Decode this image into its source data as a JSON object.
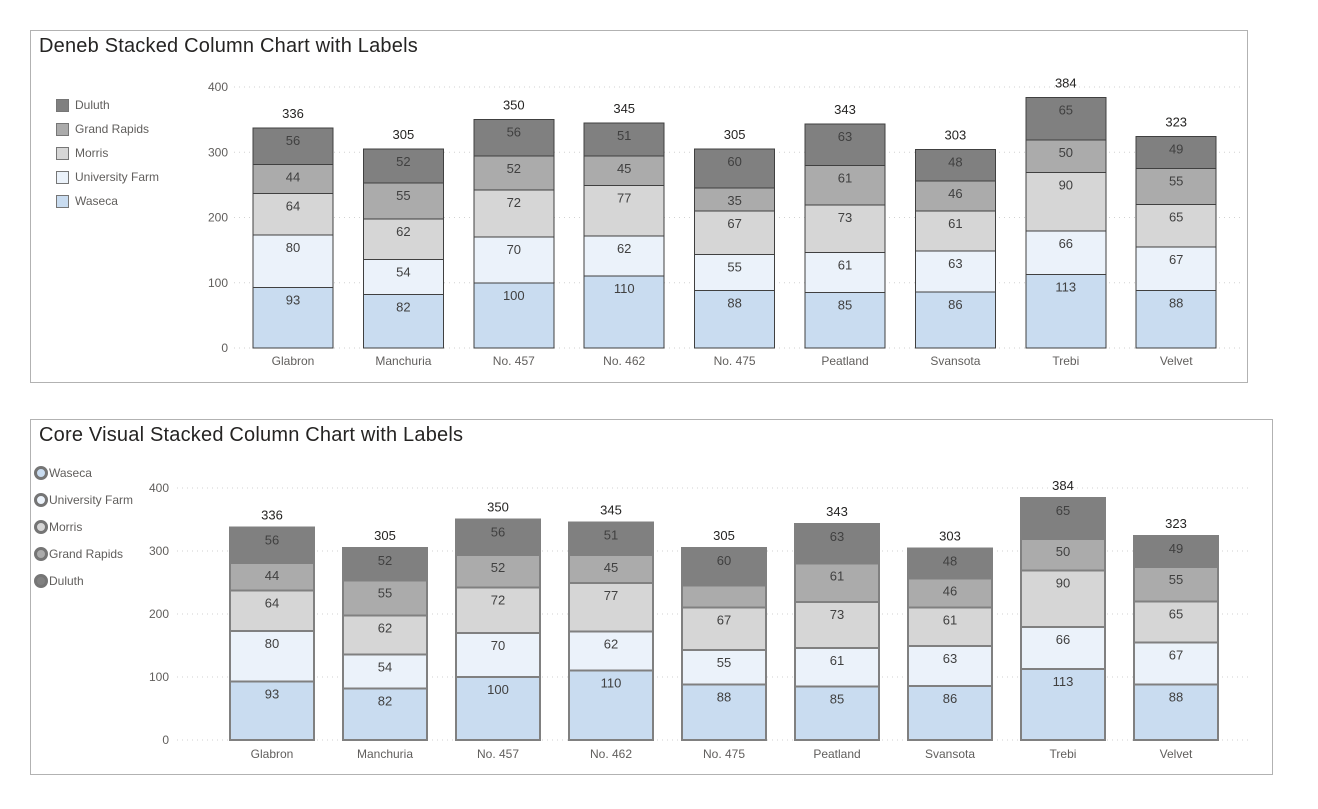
{
  "chart_data": [
    {
      "type": "bar",
      "stacked": true,
      "title": "Deneb Stacked Column Chart with Labels",
      "categories": [
        "Glabron",
        "Manchuria",
        "No. 457",
        "No. 462",
        "No. 475",
        "Peatland",
        "Svansota",
        "Trebi",
        "Velvet"
      ],
      "series": [
        {
          "name": "Waseca",
          "color": "#c9dcf0",
          "values": [
            93,
            82,
            100,
            110,
            88,
            85,
            86,
            113,
            88
          ]
        },
        {
          "name": "University Farm",
          "color": "#ebf2fa",
          "values": [
            80,
            54,
            70,
            62,
            55,
            61,
            63,
            66,
            67
          ]
        },
        {
          "name": "Morris",
          "color": "#d6d6d6",
          "values": [
            64,
            62,
            72,
            77,
            67,
            73,
            61,
            90,
            65
          ]
        },
        {
          "name": "Grand Rapids",
          "color": "#ababab",
          "values": [
            44,
            55,
            52,
            45,
            35,
            61,
            46,
            50,
            55
          ]
        },
        {
          "name": "Duluth",
          "color": "#808080",
          "values": [
            56,
            52,
            56,
            51,
            60,
            63,
            48,
            65,
            49
          ]
        }
      ],
      "totals": [
        336,
        305,
        350,
        345,
        305,
        343,
        303,
        384,
        323
      ],
      "y_axis": {
        "ticks": [
          0,
          100,
          200,
          300,
          400
        ],
        "ylim": [
          0,
          400
        ],
        "grid": "dotted"
      },
      "legend": {
        "position": "left",
        "marker": "square",
        "items": [
          "Duluth",
          "Grand Rapids",
          "Morris",
          "University Farm",
          "Waseca"
        ]
      },
      "suppressed_labels": []
    },
    {
      "type": "bar",
      "stacked": true,
      "title": "Core Visual Stacked Column Chart with Labels",
      "categories": [
        "Glabron",
        "Manchuria",
        "No. 457",
        "No. 462",
        "No. 475",
        "Peatland",
        "Svansota",
        "Trebi",
        "Velvet"
      ],
      "series": [
        {
          "name": "Waseca",
          "color": "#c9dcf0",
          "values": [
            93,
            82,
            100,
            110,
            88,
            85,
            86,
            113,
            88
          ]
        },
        {
          "name": "University Farm",
          "color": "#ebf2fa",
          "values": [
            80,
            54,
            70,
            62,
            55,
            61,
            63,
            66,
            67
          ]
        },
        {
          "name": "Morris",
          "color": "#d6d6d6",
          "values": [
            64,
            62,
            72,
            77,
            67,
            73,
            61,
            90,
            65
          ]
        },
        {
          "name": "Grand Rapids",
          "color": "#ababab",
          "values": [
            44,
            55,
            52,
            45,
            35,
            61,
            46,
            50,
            55
          ]
        },
        {
          "name": "Duluth",
          "color": "#808080",
          "values": [
            56,
            52,
            56,
            51,
            60,
            63,
            48,
            65,
            49
          ]
        }
      ],
      "totals": [
        336,
        305,
        350,
        345,
        305,
        343,
        303,
        384,
        323
      ],
      "y_axis": {
        "ticks": [
          0,
          100,
          200,
          300,
          400
        ],
        "ylim": [
          0,
          400
        ],
        "grid": "dotted"
      },
      "legend": {
        "position": "left",
        "marker": "circle",
        "items": [
          "Waseca",
          "University Farm",
          "Morris",
          "Grand Rapids",
          "Duluth"
        ]
      },
      "suppressed_labels": [
        {
          "series": "Grand Rapids",
          "category": "No. 475"
        }
      ]
    }
  ]
}
